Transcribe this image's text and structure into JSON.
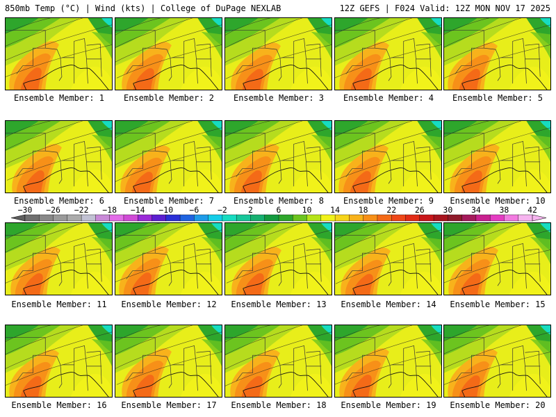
{
  "header": {
    "left": "850mb Temp (°C) | Wind (kts) | College of DuPage NEXLAB",
    "right": "12Z GEFS | F024 Valid: 12Z MON NOV 17 2025"
  },
  "colorbar": {
    "labels": [
      "−30",
      "−26",
      "−22",
      "−18",
      "−14",
      "−10",
      "−6",
      "−2",
      "2",
      "6",
      "10",
      "14",
      "18",
      "22",
      "26",
      "30",
      "34",
      "38",
      "42"
    ],
    "colors": [
      "#6f6f6f",
      "#888888",
      "#9a9a9a",
      "#ababab",
      "#c1c1d3",
      "#c98ad8",
      "#e36ce8",
      "#d04ad6",
      "#9a2ad8",
      "#5b1fd0",
      "#2a2fd6",
      "#1f63e0",
      "#1e9be8",
      "#15cde8",
      "#17dcc1",
      "#17c69a",
      "#16b071",
      "#139a3e",
      "#2ea62c",
      "#6cc41f",
      "#b6e41a",
      "#f1f21a",
      "#f6d41a",
      "#f8b21b",
      "#f79018",
      "#f46a17",
      "#ef4718",
      "#e12b16",
      "#c8161a",
      "#a8141e",
      "#8f1a2a",
      "#a41a5b",
      "#c8208f",
      "#e43cc2",
      "#f27ae0",
      "#f6b4ef"
    ]
  },
  "panel_label_prefix": "Ensemble Member: ",
  "members": [
    {
      "id": 1,
      "label": "Ensemble Member: 1"
    },
    {
      "id": 2,
      "label": "Ensemble Member: 2"
    },
    {
      "id": 3,
      "label": "Ensemble Member: 3"
    },
    {
      "id": 4,
      "label": "Ensemble Member: 4"
    },
    {
      "id": 5,
      "label": "Ensemble Member: 5"
    },
    {
      "id": 6,
      "label": "Ensemble Member: 6"
    },
    {
      "id": 7,
      "label": "Ensemble Member: 7"
    },
    {
      "id": 8,
      "label": "Ensemble Member: 8"
    },
    {
      "id": 9,
      "label": "Ensemble Member: 9"
    },
    {
      "id": 10,
      "label": "Ensemble Member: 10"
    },
    {
      "id": 11,
      "label": "Ensemble Member: 11"
    },
    {
      "id": 12,
      "label": "Ensemble Member: 12"
    },
    {
      "id": 13,
      "label": "Ensemble Member: 13"
    },
    {
      "id": 14,
      "label": "Ensemble Member: 14"
    },
    {
      "id": 15,
      "label": "Ensemble Member: 15"
    },
    {
      "id": 16,
      "label": "Ensemble Member: 16"
    },
    {
      "id": 17,
      "label": "Ensemble Member: 17"
    },
    {
      "id": 18,
      "label": "Ensemble Member: 18"
    },
    {
      "id": 19,
      "label": "Ensemble Member: 19"
    },
    {
      "id": 20,
      "label": "Ensemble Member: 20"
    }
  ]
}
